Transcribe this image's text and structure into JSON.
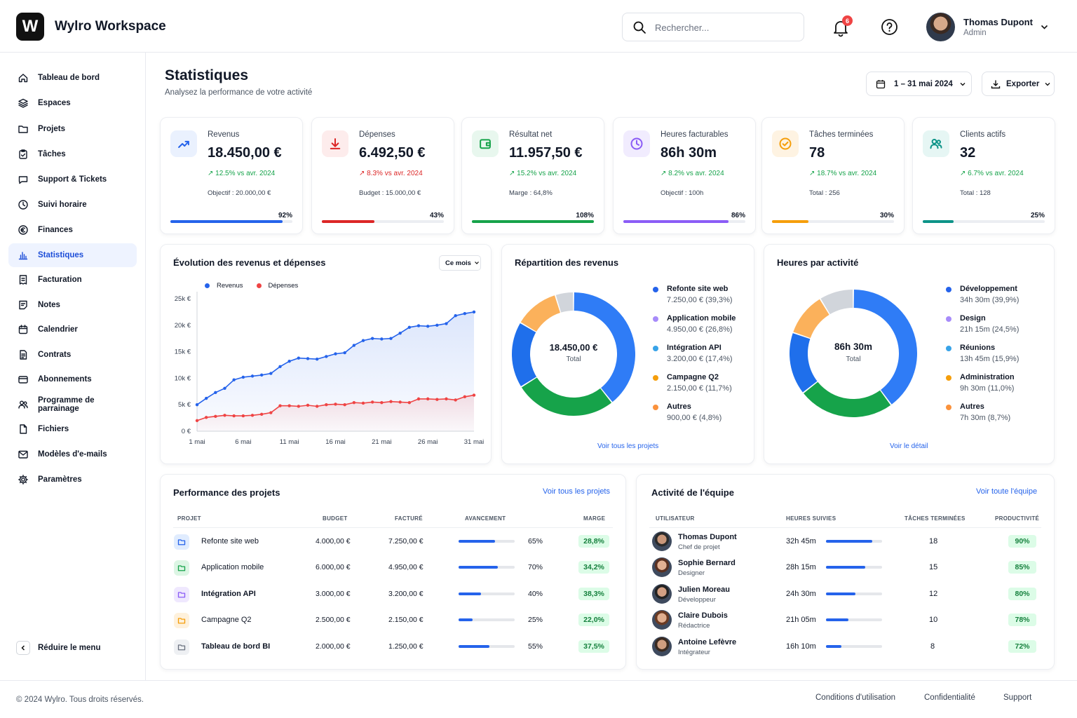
{
  "app": {
    "logo_letter": "W",
    "name": "Wylro Workspace"
  },
  "search": {
    "placeholder": "Rechercher..."
  },
  "notifications": {
    "count": "6"
  },
  "user": {
    "name": "Thomas Dupont",
    "role": "Admin"
  },
  "sidebar": {
    "items": [
      {
        "label": "Tableau de bord",
        "icon": "home-icon"
      },
      {
        "label": "Espaces",
        "icon": "layers-icon"
      },
      {
        "label": "Projets",
        "icon": "folder-icon"
      },
      {
        "label": "Tâches",
        "icon": "clipboard-check-icon"
      },
      {
        "label": "Support & Tickets",
        "icon": "chat-icon"
      },
      {
        "label": "Suivi horaire",
        "icon": "clock-icon"
      },
      {
        "label": "Finances",
        "icon": "euro-icon"
      },
      {
        "label": "Statistiques",
        "icon": "bar-chart-icon",
        "active": true
      },
      {
        "label": "Facturation",
        "icon": "invoice-icon"
      },
      {
        "label": "Notes",
        "icon": "note-icon"
      },
      {
        "label": "Calendrier",
        "icon": "calendar-icon"
      },
      {
        "label": "Contrats",
        "icon": "contract-icon"
      },
      {
        "label": "Abonnements",
        "icon": "card-icon"
      },
      {
        "label": "Programme de parrainage",
        "icon": "users-icon"
      },
      {
        "label": "Fichiers",
        "icon": "file-icon"
      },
      {
        "label": "Modèles d'e-mails",
        "icon": "mail-icon"
      },
      {
        "label": "Paramètres",
        "icon": "gear-icon"
      }
    ],
    "collapse_label": "Réduire le menu"
  },
  "page": {
    "title": "Statistiques",
    "subtitle": "Analysez la performance de votre activité",
    "date_range": "1 – 31 mai 2024",
    "export_label": "Exporter"
  },
  "kpis": [
    {
      "label": "Revenus",
      "value": "18.450,00 €",
      "trend": "↗ 12.5% vs avr. 2024",
      "trend_color": "#16a34a",
      "note": "Objectif : 20.000,00 €",
      "pct_text": "92%",
      "progress": 0.92,
      "color": "#2563eb",
      "bg": "#eaf1fe",
      "icon": "trend-up-icon"
    },
    {
      "label": "Dépenses",
      "value": "6.492,50 €",
      "trend": "↗ 8.3% vs avr. 2024",
      "trend_color": "#dc2626",
      "note": "Budget : 15.000,00 €",
      "pct_text": "43%",
      "progress": 0.43,
      "color": "#dc2626",
      "bg": "#fdecec",
      "icon": "download-icon"
    },
    {
      "label": "Résultat net",
      "value": "11.957,50 €",
      "trend": "↗ 15.2% vs avr. 2024",
      "trend_color": "#16a34a",
      "note": "Marge : 64,8%",
      "pct_text": "108%",
      "progress": 1.0,
      "color": "#16a34a",
      "bg": "#e8f7ee",
      "icon": "wallet-icon"
    },
    {
      "label": "Heures facturables",
      "value": "86h 30m",
      "trend": "↗ 8.2% vs avr. 2024",
      "trend_color": "#16a34a",
      "note": "Objectif : 100h",
      "pct_text": "86%",
      "progress": 0.86,
      "color": "#8b5cf6",
      "bg": "#f1ecfe",
      "icon": "clock-icon"
    },
    {
      "label": "Tâches terminées",
      "value": "78",
      "trend": "↗ 18.7% vs avr. 2024",
      "trend_color": "#16a34a",
      "note": "Total : 256",
      "pct_text": "30%",
      "progress": 0.3,
      "color": "#f59e0b",
      "bg": "#fef3e2",
      "icon": "check-circle-icon"
    },
    {
      "label": "Clients actifs",
      "value": "32",
      "trend": "↗ 6.7% vs avr. 2024",
      "trend_color": "#16a34a",
      "note": "Total : 128",
      "pct_text": "25%",
      "progress": 0.25,
      "color": "#0d9488",
      "bg": "#e6f6f4",
      "icon": "users-icon"
    }
  ],
  "line_chart": {
    "title": "Évolution des revenus et dépenses",
    "period": "Ce mois",
    "legend": [
      "Revenus",
      "Dépenses"
    ],
    "y_ticks": [
      "25k €",
      "20k €",
      "15k €",
      "10k €",
      "5k €",
      "0 €"
    ],
    "x_ticks": [
      "1 mai",
      "6 mai",
      "11 mai",
      "16 mai",
      "21 mai",
      "26 mai",
      "31 mai"
    ]
  },
  "chart_data": {
    "type": "line",
    "title": "Évolution des revenus et dépenses",
    "x": [
      1,
      2,
      3,
      4,
      5,
      6,
      7,
      8,
      9,
      10,
      11,
      12,
      13,
      14,
      15,
      16,
      17,
      18,
      19,
      20,
      21,
      22,
      23,
      24,
      25,
      26,
      27,
      28,
      29,
      30,
      31
    ],
    "series": [
      {
        "name": "Revenus",
        "color": "#2563eb",
        "values": [
          5000,
          6200,
          7300,
          8100,
          9700,
          10200,
          10400,
          10600,
          10900,
          12200,
          13200,
          13800,
          13700,
          13600,
          14100,
          14600,
          14800,
          16200,
          17100,
          17500,
          17400,
          17500,
          18500,
          19600,
          19900,
          19800,
          20000,
          20300,
          21800,
          22200,
          22500
        ]
      },
      {
        "name": "Dépenses",
        "color": "#ef4444",
        "values": [
          2000,
          2600,
          2800,
          3000,
          2900,
          2900,
          3000,
          3200,
          3500,
          4800,
          4800,
          4700,
          4900,
          4700,
          5000,
          5100,
          5000,
          5400,
          5300,
          5500,
          5400,
          5600,
          5500,
          5400,
          6100,
          6100,
          6000,
          6100,
          5900,
          6500,
          6800
        ]
      }
    ],
    "ylim": [
      0,
      25000
    ]
  },
  "donut_revenus": {
    "title": "Répartition des revenus",
    "center_value": "18.450,00 €",
    "center_label": "Total",
    "link": "Voir tous les projets",
    "segments": [
      {
        "name": "Refonte site web",
        "value": "7.250,00 € (39,3%)",
        "share": 39.3,
        "color": "#2f7cf6"
      },
      {
        "name": "Application mobile",
        "value": "4.950,00 € (26,8%)",
        "share": 26.8,
        "color": "#16a34a"
      },
      {
        "name": "Intégration API",
        "value": "3.200,00 € (17,4%)",
        "share": 17.4,
        "color": "#1f6feb"
      },
      {
        "name": "Campagne Q2",
        "value": "2.150,00 € (11,7%)",
        "share": 11.7,
        "color": "#fbb15b"
      },
      {
        "name": "Autres",
        "value": "900,00 € (4,8%)",
        "share": 4.8,
        "color": "#d1d5db"
      }
    ],
    "legend_colors": [
      "#2563eb",
      "#a78bfa",
      "#38a3e8",
      "#f59e0b",
      "#fb923c"
    ]
  },
  "donut_heures": {
    "title": "Heures par activité",
    "center_value": "86h 30m",
    "center_label": "Total",
    "link": "Voir le détail",
    "segments": [
      {
        "name": "Développement",
        "value": "34h 30m (39,9%)",
        "share": 39.9,
        "color": "#2f7cf6"
      },
      {
        "name": "Design",
        "value": "21h 15m (24,5%)",
        "share": 24.5,
        "color": "#16a34a"
      },
      {
        "name": "Réunions",
        "value": "13h 45m (15,9%)",
        "share": 15.9,
        "color": "#1f6feb"
      },
      {
        "name": "Administration",
        "value": "9h 30m (11,0%)",
        "share": 11.0,
        "color": "#fbb15b"
      },
      {
        "name": "Autres",
        "value": "7h 30m (8,7%)",
        "share": 8.7,
        "color": "#d1d5db"
      }
    ],
    "legend_colors": [
      "#2563eb",
      "#a78bfa",
      "#38a3e8",
      "#f59e0b",
      "#fb923c"
    ]
  },
  "projects": {
    "title": "Performance des projets",
    "link": "Voir tous les projets",
    "headers": [
      "PROJET",
      "BUDGET",
      "FACTURÉ",
      "AVANCEMENT",
      "MARGE"
    ],
    "rows": [
      {
        "name": "Refonte site web",
        "budget": "4.000,00 €",
        "billed": "7.250,00 €",
        "progress_text": "65%",
        "progress": 0.65,
        "margin": "28,8%",
        "icon_color": "#2563eb",
        "icon_bg": "#e0ecfe"
      },
      {
        "name": "Application mobile",
        "budget": "6.000,00 €",
        "billed": "4.950,00 €",
        "progress_text": "70%",
        "progress": 0.7,
        "margin": "34,2%",
        "icon_color": "#16a34a",
        "icon_bg": "#dcf5e4"
      },
      {
        "name": "Intégration API",
        "budget": "3.000,00 €",
        "billed": "3.200,00 €",
        "progress_text": "40%",
        "progress": 0.4,
        "margin": "38,3%",
        "icon_color": "#8b5cf6",
        "icon_bg": "#efe8fe"
      },
      {
        "name": "Campagne Q2",
        "budget": "2.500,00 €",
        "billed": "2.150,00 €",
        "progress_text": "25%",
        "progress": 0.25,
        "margin": "22,0%",
        "icon_color": "#f59e0b",
        "icon_bg": "#fef1dc"
      },
      {
        "name": "Tableau de bord BI",
        "budget": "2.000,00 €",
        "billed": "1.250,00 €",
        "progress_text": "55%",
        "progress": 0.55,
        "margin": "37,5%",
        "icon_color": "#6b7280",
        "icon_bg": "#eef0f3"
      }
    ]
  },
  "team": {
    "title": "Activité de l'équipe",
    "link": "Voir toute l'équipe",
    "headers": [
      "UTILISATEUR",
      "HEURES SUIVIES",
      "TÂCHES TERMINÉES",
      "PRODUCTIVITÉ"
    ],
    "rows": [
      {
        "name": "Thomas Dupont",
        "role": "Chef de projet",
        "hours": "32h 45m",
        "hours_share": 0.82,
        "tasks": "18",
        "productivity": "90%"
      },
      {
        "name": "Sophie Bernard",
        "role": "Designer",
        "hours": "28h 15m",
        "hours_share": 0.7,
        "tasks": "15",
        "productivity": "85%"
      },
      {
        "name": "Julien Moreau",
        "role": "Développeur",
        "hours": "24h 30m",
        "hours_share": 0.52,
        "tasks": "12",
        "productivity": "80%"
      },
      {
        "name": "Claire Dubois",
        "role": "Rédactrice",
        "hours": "21h 05m",
        "hours_share": 0.4,
        "tasks": "10",
        "productivity": "78%"
      },
      {
        "name": "Antoine Lefèvre",
        "role": "Intégrateur",
        "hours": "16h 10m",
        "hours_share": 0.28,
        "tasks": "8",
        "productivity": "72%"
      }
    ]
  },
  "footer": {
    "copyright": "© 2024 Wylro. Tous droits réservés.",
    "links": [
      "Conditions d'utilisation",
      "Confidentialité",
      "Support"
    ]
  }
}
